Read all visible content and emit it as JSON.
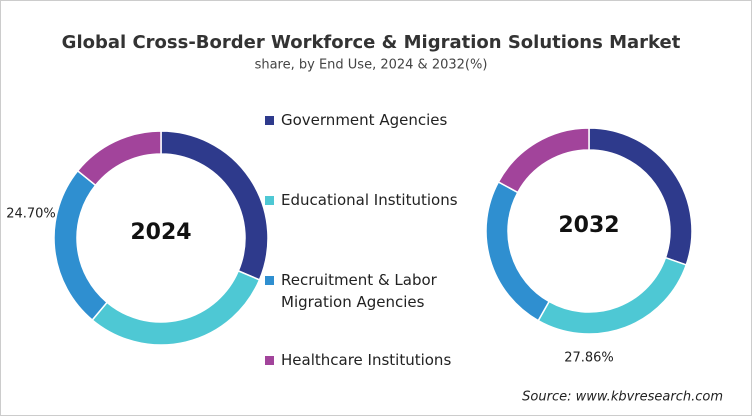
{
  "title": "Global Cross-Border Workforce & Migration Solutions Market",
  "subtitle": "share, by End Use, 2024 & 2032(%)",
  "source": "Source: www.kbvresearch.com",
  "chart_data": [
    {
      "type": "pie",
      "center_label": "2024",
      "categories": [
        "Government Agencies",
        "Educational Institutions",
        "Recruitment & Labor Migration Agencies",
        "Healthcare Institutions"
      ],
      "colors": [
        "#2e3a8c",
        "#4ec8d4",
        "#2f8fd0",
        "#a2449b"
      ],
      "values": [
        31.4,
        29.7,
        24.7,
        14.2
      ],
      "value_labels": [
        null,
        null,
        "24.70%",
        null
      ]
    },
    {
      "type": "pie",
      "center_label": "2032",
      "categories": [
        "Government Agencies",
        "Educational Institutions",
        "Recruitment & Labor Migration Agencies",
        "Healthcare Institutions"
      ],
      "colors": [
        "#2e3a8c",
        "#4ec8d4",
        "#2f8fd0",
        "#a2449b"
      ],
      "values": [
        30.34,
        27.86,
        24.7,
        17.1
      ],
      "value_labels": [
        null,
        "27.86%",
        null,
        null
      ]
    }
  ]
}
